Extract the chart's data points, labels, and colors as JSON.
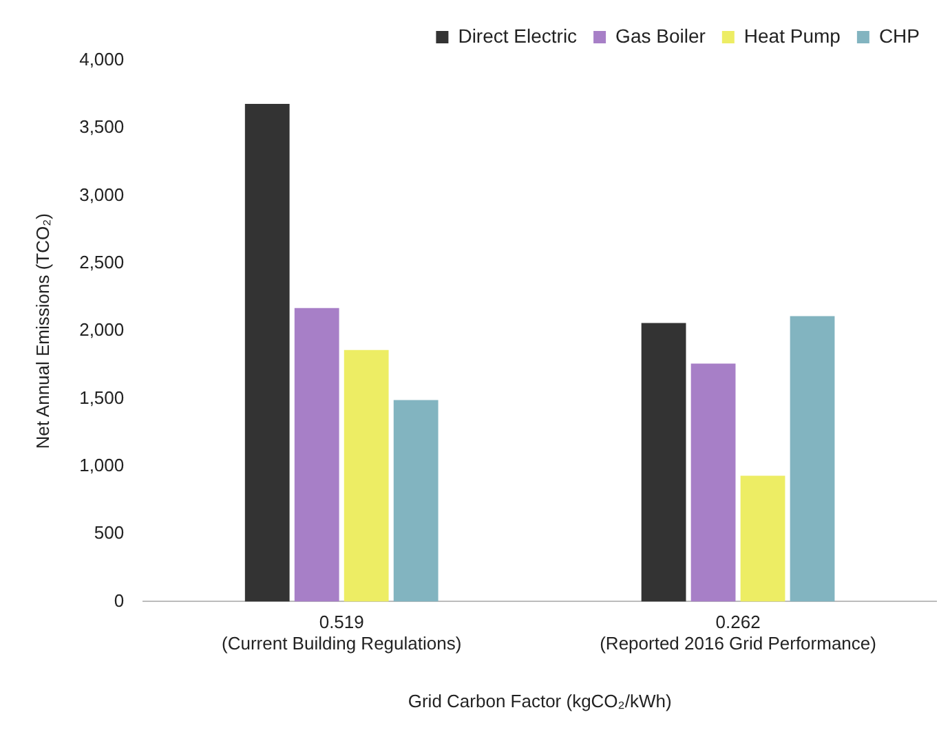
{
  "chart_data": {
    "type": "bar",
    "xlabel": "Grid Carbon Factor (kgCO₂/kWh)",
    "ylabel": "Net Annual Emissions (TCO₂)",
    "categories": [
      "0.519\n(Current Building Regulations)",
      "0.262\n(Reported 2016 Grid Performance)"
    ],
    "series": [
      {
        "name": "Direct Electric",
        "color": "#333333",
        "values": [
          3680,
          2060
        ]
      },
      {
        "name": "Gas Boiler",
        "color": "#a77fc7",
        "values": [
          2170,
          1760
        ]
      },
      {
        "name": "Heat Pump",
        "color": "#eded64",
        "values": [
          1860,
          930
        ]
      },
      {
        "name": "CHP",
        "color": "#82b4c0",
        "values": [
          1490,
          2110
        ]
      }
    ],
    "ylim": [
      0,
      4000
    ],
    "yticks": [
      0,
      500,
      {
        "value": 1000,
        "label": "1,000"
      },
      {
        "value": 1500,
        "label": "1,500"
      },
      {
        "value": 2000,
        "label": "2,000"
      },
      {
        "value": 2500,
        "label": "2,500"
      },
      {
        "value": 3000,
        "label": "3,000"
      },
      {
        "value": 3500,
        "label": "3,500"
      },
      {
        "value": 4000,
        "label": "4,000"
      }
    ],
    "grid": false,
    "legend": "top"
  }
}
